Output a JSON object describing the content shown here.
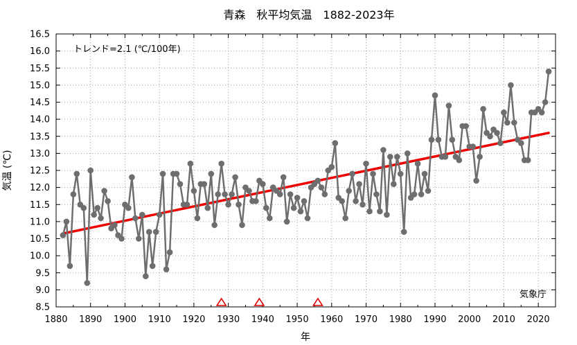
{
  "chart_data": {
    "type": "line",
    "title": "青森　秋平均気温　1882-2023年",
    "xlabel": "年",
    "ylabel": "気温 (℃)",
    "trend_label": "トレンド=2.1 (℃/100年)",
    "source": "気象庁",
    "xlim": [
      1880,
      2025
    ],
    "ylim": [
      8.5,
      16.5
    ],
    "x_ticks": [
      1880,
      1890,
      1900,
      1910,
      1920,
      1930,
      1940,
      1950,
      1960,
      1970,
      1980,
      1990,
      2000,
      2010,
      2020
    ],
    "y_ticks": [
      "8.5",
      "9.0",
      "9.5",
      "10.0",
      "10.5",
      "11.0",
      "11.5",
      "12.0",
      "12.5",
      "13.0",
      "13.5",
      "14.0",
      "14.5",
      "15.0",
      "15.5",
      "16.0",
      "16.5"
    ],
    "grid": true,
    "colors": {
      "series": "#6e6e6e",
      "trend": "#ee0000",
      "marker": "#dd0000"
    },
    "series": [
      {
        "start_year": 1882,
        "values": [
          10.6,
          11.0,
          9.7,
          11.8,
          12.4,
          11.5,
          11.4,
          9.2,
          12.5,
          11.2,
          11.4,
          11.1,
          11.9,
          11.6,
          10.8,
          10.9,
          10.6,
          10.5,
          11.5,
          11.4,
          12.3,
          11.1,
          10.5,
          11.2,
          9.4,
          10.7,
          9.7,
          10.7,
          11.2,
          12.4,
          9.6,
          10.1,
          12.4,
          12.4,
          12.1,
          11.5,
          11.5,
          12.7,
          11.9,
          11.1,
          12.1,
          12.1,
          11.4,
          12.4,
          10.9,
          11.8,
          12.7,
          11.8,
          11.5,
          11.8,
          12.3,
          11.5,
          10.9,
          12.0,
          11.9,
          11.6,
          11.6,
          12.2,
          12.1,
          11.4,
          11.1,
          12.0,
          11.9,
          11.8,
          12.3,
          11.0,
          11.8,
          11.4,
          11.7,
          11.3,
          11.6,
          11.1,
          12.0,
          12.1,
          12.2,
          12.0,
          11.8,
          12.5,
          12.6,
          13.3,
          11.7,
          11.6,
          11.1,
          11.9,
          12.4,
          11.6,
          12.1,
          11.5,
          12.7,
          11.3,
          12.4,
          11.8,
          11.3,
          13.1,
          11.2,
          12.9,
          12.1,
          12.9,
          12.4,
          10.7,
          13.0,
          11.7,
          11.8,
          12.7,
          11.8,
          12.4,
          11.9,
          13.4,
          14.7,
          13.4,
          12.9,
          12.9,
          14.4,
          13.4,
          12.9,
          12.8,
          13.8,
          13.8,
          13.2,
          13.2,
          12.2,
          12.9,
          14.3,
          13.6,
          13.5,
          13.7,
          13.6,
          13.3,
          14.2,
          13.9,
          15.0,
          13.9,
          13.4,
          13.3,
          12.8,
          12.8,
          14.2,
          14.2,
          14.3,
          14.2,
          14.5,
          15.4
        ]
      }
    ],
    "trend": {
      "x": [
        1882,
        2023
      ],
      "y": [
        10.65,
        13.6
      ]
    },
    "markers": [
      1928,
      1939,
      1956
    ]
  }
}
